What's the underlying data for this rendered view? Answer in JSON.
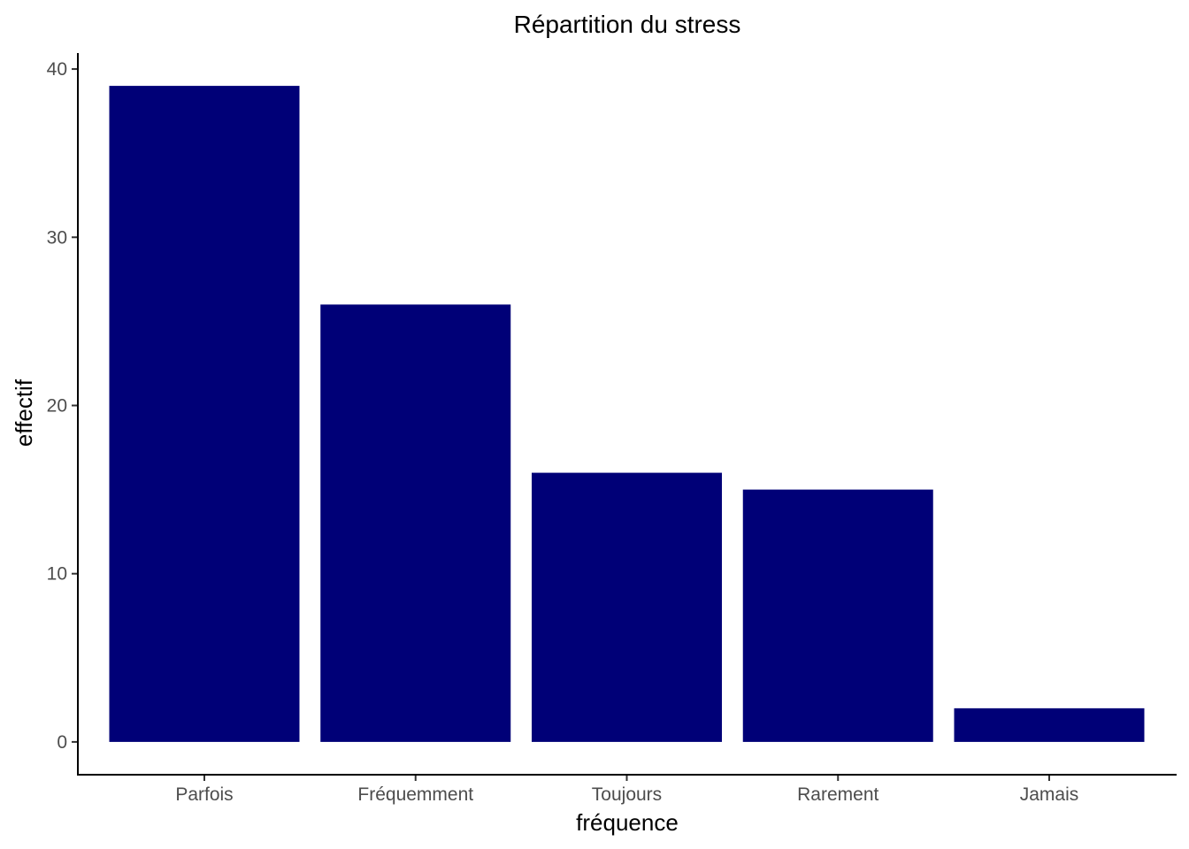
{
  "chart_data": {
    "type": "bar",
    "title": "Répartition du stress",
    "xlabel": "fréquence",
    "ylabel": "effectif",
    "categories": [
      "Parfois",
      "Fréquemment",
      "Toujours",
      "Rarement",
      "Jamais"
    ],
    "values": [
      39,
      26,
      16,
      15,
      2
    ],
    "ylim": [
      -1.95,
      40.95
    ],
    "yticks": [
      0,
      10,
      20,
      30,
      40
    ],
    "ytick_labels": [
      "0",
      "10",
      "20",
      "30",
      "40"
    ],
    "bar_color": "#000077",
    "grid": false,
    "legend": "none"
  }
}
